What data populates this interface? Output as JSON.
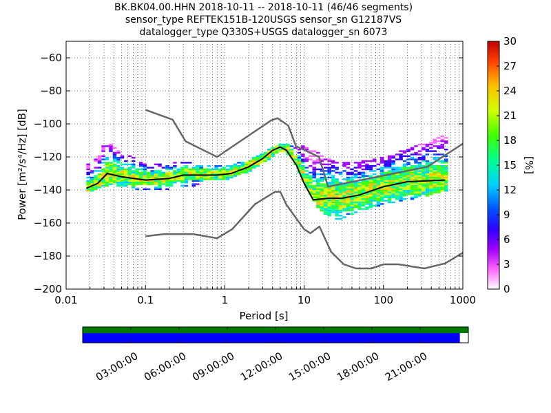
{
  "title": {
    "line1": "BK.BK04.00.HHN   2018-10-11 -- 2018-10-11  (46/46 segments)",
    "line2": "sensor_type REFTEK151B-120USGS sensor_sn G12187VS",
    "line3": "datalogger_type Q330S+USGS datalogger_sn 6073"
  },
  "chart_data": [
    {
      "type": "heatmap",
      "xlabel": "Period [s]",
      "ylabel": "Power [m²/s⁴/Hz] [dB]",
      "xscale": "log",
      "xlim": [
        0.01,
        1000
      ],
      "ylim": [
        -200,
        -50
      ],
      "x_ticks": [
        "0.01",
        "0.1",
        "1",
        "10",
        "100",
        "1000"
      ],
      "y_ticks": [
        "−200",
        "−180",
        "−160",
        "−140",
        "−120",
        "−100",
        "−80",
        "−60"
      ],
      "colorbar": {
        "label": "[%]",
        "range": [
          0,
          30
        ],
        "ticks": [
          "0",
          "3",
          "6",
          "9",
          "12",
          "15",
          "18",
          "21",
          "24",
          "27",
          "30"
        ]
      },
      "grid": "dotted, on log period axis",
      "mode_curve": {
        "period": [
          0.018,
          0.025,
          0.033,
          0.05,
          0.1,
          0.2,
          0.3,
          0.5,
          0.8,
          1.2,
          2,
          3,
          4,
          5,
          6,
          8,
          10,
          13,
          20,
          30,
          50,
          100,
          200,
          600
        ],
        "power": [
          -139,
          -136,
          -130,
          -132,
          -134,
          -133,
          -131,
          -131,
          -131,
          -130,
          -126,
          -121,
          -116,
          -114,
          -116,
          -125,
          -136,
          -146,
          -145,
          -145,
          -143,
          -138,
          -135,
          -134
        ]
      },
      "new_high_noise_model": {
        "period": [
          0.1,
          0.22,
          0.32,
          0.8,
          3.8,
          4.6,
          6.3,
          7.9,
          15.4,
          20,
          354.8,
          1000
        ],
        "power": [
          -91.5,
          -97.4,
          -110.5,
          -120,
          -98,
          -96.5,
          -101,
          -113.5,
          -120,
          -138,
          -126,
          -112
        ]
      },
      "new_low_noise_model": {
        "period": [
          0.1,
          0.17,
          0.4,
          0.8,
          1.24,
          2.4,
          4.3,
          5,
          6,
          10,
          12,
          15.6,
          21.9,
          31.6,
          45,
          70,
          101,
          154,
          328,
          600,
          1000
        ],
        "power": [
          -168,
          -166.7,
          -166.7,
          -169.2,
          -163.7,
          -148.6,
          -141.1,
          -141.1,
          -149,
          -163.8,
          -166.2,
          -162.1,
          -177.5,
          -185,
          -187.5,
          -187.5,
          -185,
          -185,
          -187.5,
          -184.4,
          -178
        ]
      },
      "percentile_spread": {
        "period": [
          0.02,
          0.03,
          0.05,
          0.1,
          0.2,
          0.3,
          0.5,
          1,
          2,
          4,
          5,
          7,
          10,
          15,
          25,
          50,
          100,
          300,
          600
        ],
        "lower": [
          -141,
          -137,
          -138,
          -140,
          -139,
          -138,
          -136,
          -134,
          -128,
          -119,
          -116,
          -122,
          -138,
          -152,
          -159,
          -152,
          -148,
          -144,
          -140
        ],
        "upper": [
          -125,
          -111,
          -118,
          -125,
          -124,
          -123,
          -126,
          -126,
          -122,
          -114,
          -112,
          -113,
          -114,
          -118,
          -124,
          -123,
          -120,
          -112,
          -107
        ]
      }
    },
    {
      "type": "timeline",
      "description_of_bars": "data coverage (green) and gaps/used segments (blue)",
      "x_ticks": [
        "03:00:00",
        "06:00:00",
        "09:00:00",
        "12:00:00",
        "15:00:00",
        "18:00:00",
        "21:00:00"
      ],
      "coverage_fraction_blue": 0.978,
      "coverage_fraction_green": 1.0
    }
  ],
  "colors": {
    "noise_model": "#666666",
    "mode_line": "#000000",
    "coverage_green": "#007a00",
    "coverage_blue": "#0000ff"
  }
}
